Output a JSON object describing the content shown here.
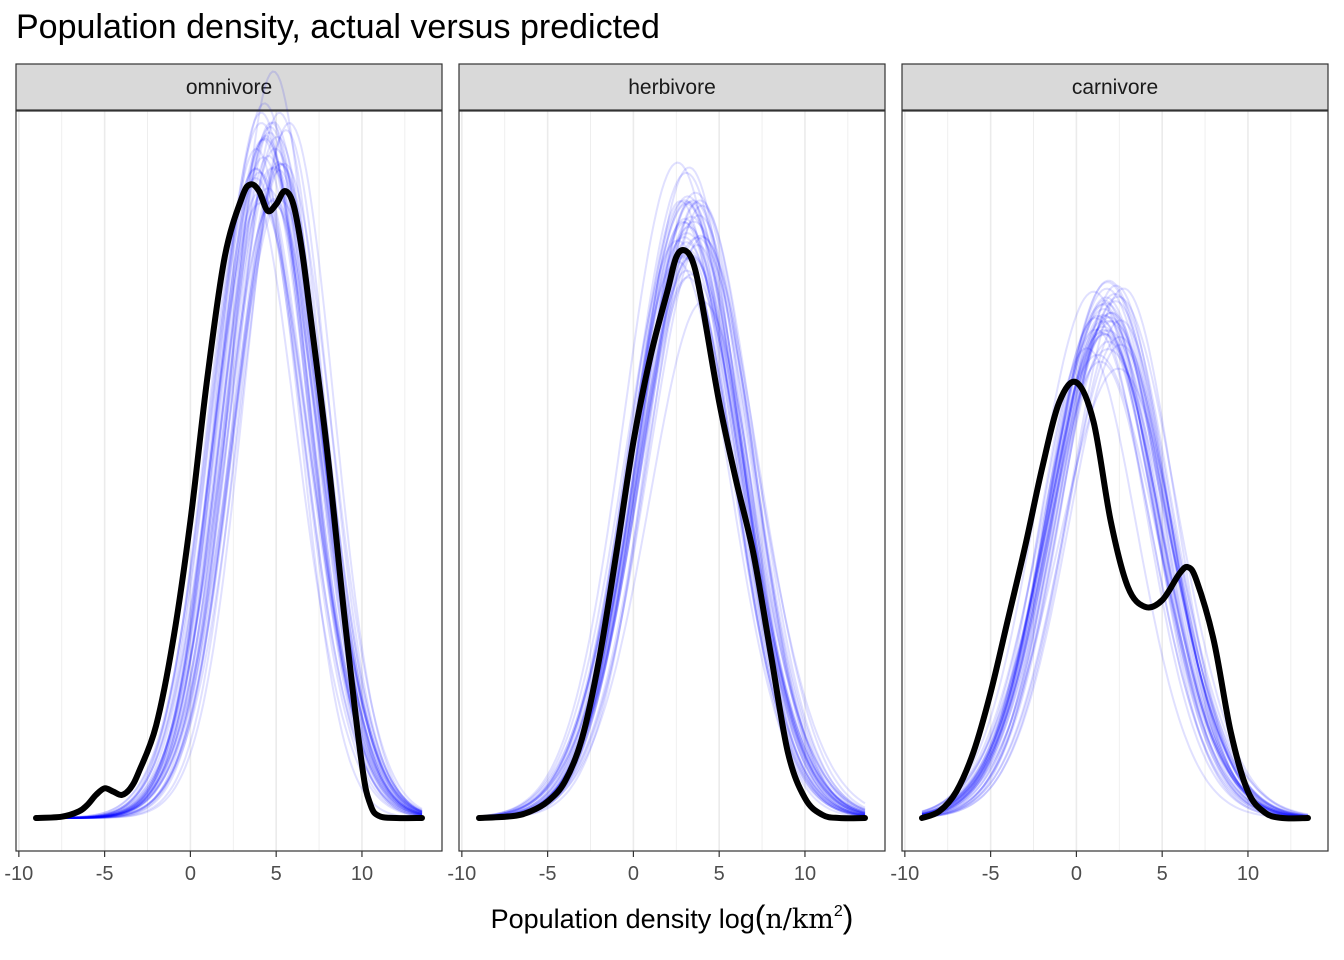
{
  "chart_data": {
    "type": "line",
    "title": "Population density, actual versus predicted",
    "xlabel": "Population density log(n/km²)",
    "xlabel_parts": {
      "prefix": "Population density log",
      "unit_base": "n/km",
      "unit_exp": "2"
    },
    "ylabel": "",
    "xlim": [
      -9,
      13.5
    ],
    "xticks": [
      -10,
      -5,
      0,
      5,
      10
    ],
    "grid": true,
    "facets": [
      {
        "label": "omnivore",
        "observed": {
          "name": "actual",
          "color": "#000000",
          "x": [
            -9,
            -7.5,
            -6.5,
            -6,
            -5.5,
            -5,
            -4.5,
            -4,
            -3.5,
            -3,
            -2,
            -1,
            0,
            1,
            2,
            3,
            3.5,
            4,
            4.5,
            5,
            5.5,
            6,
            6.5,
            7,
            8,
            9,
            10,
            10.5,
            11,
            12,
            13.5
          ],
          "y": [
            0,
            0.002,
            0.01,
            0.02,
            0.035,
            0.045,
            0.04,
            0.035,
            0.045,
            0.07,
            0.14,
            0.27,
            0.45,
            0.67,
            0.85,
            0.94,
            0.96,
            0.95,
            0.92,
            0.93,
            0.95,
            0.93,
            0.86,
            0.76,
            0.55,
            0.3,
            0.08,
            0.02,
            0.003,
            0,
            0
          ]
        },
        "predicted": {
          "name": "predicted",
          "color": "#0000ff",
          "center": 4.6,
          "spread": 2.9,
          "peak": 1.0,
          "draws": 40
        }
      },
      {
        "label": "herbivore",
        "observed": {
          "name": "actual",
          "color": "#000000",
          "x": [
            -9,
            -7,
            -6,
            -5,
            -4,
            -3,
            -2,
            -1,
            0,
            1,
            2,
            2.5,
            3,
            3.5,
            4,
            5,
            6,
            7,
            8,
            9,
            10,
            11,
            12,
            13.5
          ],
          "y": [
            0,
            0.003,
            0.01,
            0.025,
            0.055,
            0.12,
            0.24,
            0.4,
            0.57,
            0.7,
            0.8,
            0.85,
            0.86,
            0.84,
            0.78,
            0.63,
            0.51,
            0.4,
            0.25,
            0.1,
            0.03,
            0.005,
            0,
            0
          ]
        },
        "predicted": {
          "name": "predicted",
          "color": "#0000ff",
          "center": 3.3,
          "spread": 3.4,
          "peak": 0.9,
          "draws": 40
        }
      },
      {
        "label": "carnivore",
        "observed": {
          "name": "actual",
          "color": "#000000",
          "x": [
            -9,
            -8,
            -7,
            -6,
            -5,
            -4,
            -3,
            -2,
            -1,
            0,
            1,
            2,
            3,
            4,
            5,
            6,
            6.5,
            7,
            8,
            9,
            10,
            11,
            12,
            13.5
          ],
          "y": [
            0,
            0.01,
            0.04,
            0.1,
            0.19,
            0.3,
            0.41,
            0.53,
            0.63,
            0.66,
            0.6,
            0.45,
            0.35,
            0.32,
            0.33,
            0.37,
            0.38,
            0.36,
            0.27,
            0.13,
            0.04,
            0.008,
            0,
            0
          ]
        },
        "predicted": {
          "name": "predicted",
          "color": "#0000ff",
          "center": 1.6,
          "spread": 3.5,
          "peak": 0.75,
          "draws": 40
        }
      }
    ]
  }
}
